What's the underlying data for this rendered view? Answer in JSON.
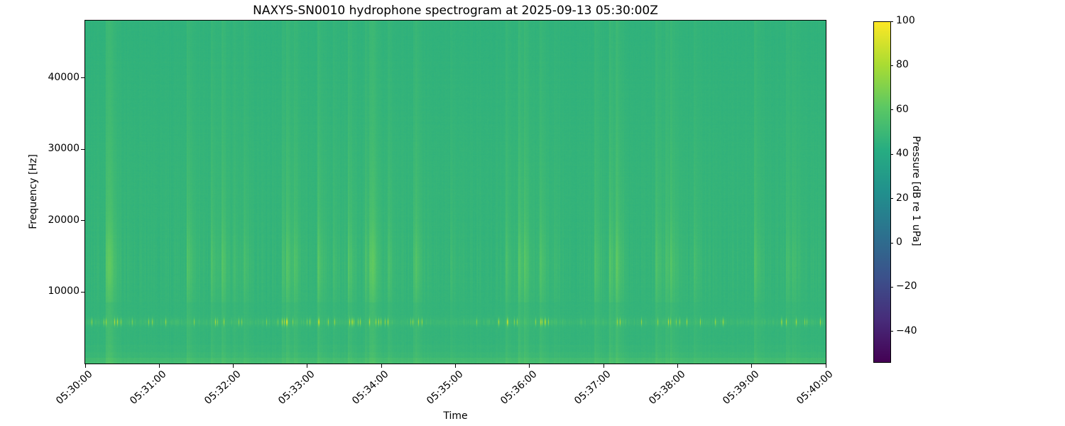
{
  "chart_data": {
    "type": "heatmap",
    "subtype": "spectrogram",
    "title": "NAXYS-SN0010 hydrophone spectrogram at 2025-09-13 05:30:00Z",
    "xlabel": "Time",
    "ylabel": "Frequency [Hz]",
    "colorbar_label": "Pressure [dB re 1 uPa]",
    "x_ticks": [
      "05:30:00",
      "05:31:00",
      "05:32:00",
      "05:33:00",
      "05:34:00",
      "05:35:00",
      "05:36:00",
      "05:37:00",
      "05:38:00",
      "05:39:00",
      "05:40:00"
    ],
    "y_ticks": [
      {
        "value": 10000,
        "label": "10000"
      },
      {
        "value": 20000,
        "label": "20000"
      },
      {
        "value": 30000,
        "label": "30000"
      },
      {
        "value": 40000,
        "label": "40000"
      }
    ],
    "freq_axis_range_hz": [
      0,
      48000
    ],
    "time_range": [
      "05:30:00",
      "05:40:00"
    ],
    "colorbar_ticks": [
      {
        "value": 100,
        "label": "100"
      },
      {
        "value": 80,
        "label": "80"
      },
      {
        "value": 60,
        "label": "60"
      },
      {
        "value": 40,
        "label": "40"
      },
      {
        "value": 20,
        "label": "20"
      },
      {
        "value": 0,
        "label": "0"
      },
      {
        "value": -20,
        "label": "−20"
      },
      {
        "value": -40,
        "label": "−40"
      }
    ],
    "color_range_db": [
      -53.5,
      100
    ],
    "colormap": "viridis",
    "colormap_stops": [
      "#440154",
      "#472c7a",
      "#3b518b",
      "#2c718e",
      "#21908d",
      "#27ad81",
      "#5cc863",
      "#aadc32",
      "#fde725"
    ],
    "background_level_db": 47,
    "grid": false,
    "legend": false,
    "features": [
      {
        "type": "tonal-pulses",
        "frequency_hz": 5800,
        "peak_level_db": 85,
        "description": "intermittent bright narrowband yellow pulses at ~5.8 kHz throughout the record"
      },
      {
        "type": "broadband-streaks",
        "frequency_band_hz": [
          8000,
          19000
        ],
        "level_db_range": [
          50,
          62
        ],
        "description": "vertical transient streaks (brighter green) clustered in time, strongest near 12-16 kHz"
      },
      {
        "type": "low-frequency-band",
        "frequency_band_hz": [
          0,
          1600
        ],
        "level_db": 52,
        "description": "brighter green band along the bottom edge below ~1.6 kHz"
      },
      {
        "type": "ambient-background",
        "level_db": 47,
        "description": "uniform mid-green ambient field over the full band"
      }
    ],
    "render_seed": 13
  }
}
